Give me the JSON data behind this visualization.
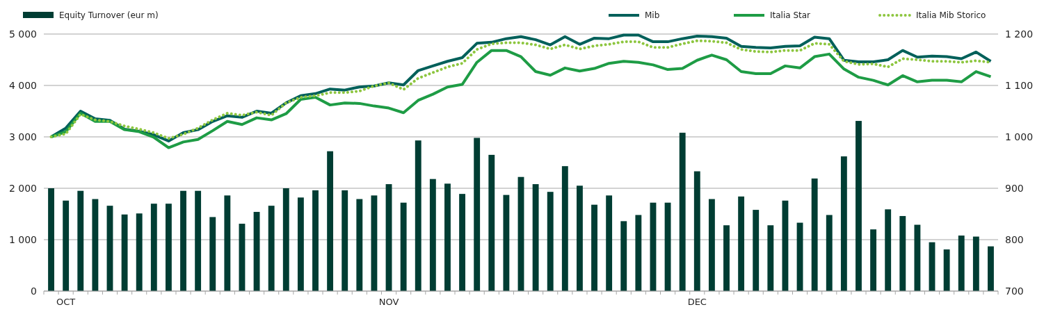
{
  "chart_data": {
    "type": "bar",
    "categories": [
      null,
      "OCT",
      null,
      null,
      null,
      null,
      null,
      null,
      null,
      null,
      null,
      null,
      null,
      null,
      null,
      null,
      null,
      null,
      null,
      null,
      null,
      null,
      null,
      "NOV",
      null,
      null,
      null,
      null,
      null,
      null,
      null,
      null,
      null,
      null,
      null,
      null,
      null,
      null,
      null,
      null,
      null,
      null,
      null,
      null,
      "DEC",
      null,
      null,
      null,
      null,
      null,
      null,
      null,
      null,
      null,
      null,
      null,
      null,
      null,
      null,
      null,
      null,
      null,
      null,
      null,
      null
    ],
    "series": [
      {
        "name": "Equity Turnover (eur m)",
        "color": "#003d33",
        "values": [
          2000,
          1760,
          1950,
          1790,
          1660,
          1490,
          1510,
          1700,
          1700,
          1950,
          1950,
          1440,
          1860,
          1310,
          1540,
          1660,
          2000,
          1820,
          1960,
          2720,
          1960,
          1790,
          1860,
          2080,
          1720,
          2930,
          2180,
          2090,
          1890,
          2980,
          2650,
          1870,
          2220,
          2080,
          1930,
          2430,
          2050,
          1680,
          1860,
          1360,
          1480,
          1720,
          1720,
          3080,
          2330,
          1790,
          1280,
          1840,
          1580,
          1280,
          1760,
          1330,
          2190,
          1480,
          2620,
          3310,
          1200,
          1590,
          1460,
          1290,
          950,
          810,
          1080,
          1060,
          870
        ]
      },
      {
        "name": "Mib",
        "type": "line",
        "axis": "y2",
        "color": "#00605a",
        "line_style": "solid",
        "values": [
          1000,
          1017,
          1050,
          1035,
          1032,
          1015,
          1011,
          1004,
          992,
          1008,
          1014,
          1030,
          1041,
          1038,
          1050,
          1046,
          1066,
          1080,
          1084,
          1093,
          1091,
          1097,
          1099,
          1105,
          1101,
          1129,
          1138,
          1147,
          1154,
          1182,
          1184,
          1191,
          1195,
          1189,
          1179,
          1195,
          1180,
          1192,
          1191,
          1198,
          1198,
          1185,
          1185,
          1191,
          1196,
          1195,
          1192,
          1176,
          1174,
          1173,
          1176,
          1177,
          1194,
          1191,
          1149,
          1146,
          1146,
          1150,
          1168,
          1155,
          1157,
          1156,
          1152,
          1165,
          1147
        ]
      },
      {
        "name": "Italia Star",
        "type": "line",
        "axis": "y2",
        "color": "#1e9c45",
        "line_style": "solid",
        "values": [
          1000,
          1010,
          1046,
          1030,
          1030,
          1014,
          1010,
          999,
          979,
          990,
          995,
          1012,
          1030,
          1024,
          1037,
          1033,
          1045,
          1073,
          1077,
          1062,
          1066,
          1065,
          1060,
          1056,
          1047,
          1071,
          1083,
          1097,
          1102,
          1145,
          1168,
          1168,
          1156,
          1127,
          1120,
          1134,
          1128,
          1133,
          1143,
          1147,
          1145,
          1140,
          1131,
          1133,
          1149,
          1159,
          1150,
          1127,
          1123,
          1123,
          1138,
          1134,
          1156,
          1161,
          1132,
          1116,
          1110,
          1101,
          1119,
          1107,
          1110,
          1110,
          1107,
          1127,
          1117
        ]
      },
      {
        "name": "Italia Mib Storico",
        "type": "line",
        "axis": "y2",
        "color": "#8dc63f",
        "line_style": "dotted",
        "values": [
          1000,
          1006,
          1044,
          1033,
          1030,
          1021,
          1015,
          1008,
          997,
          1005,
          1017,
          1033,
          1046,
          1042,
          1048,
          1042,
          1066,
          1077,
          1080,
          1086,
          1086,
          1089,
          1099,
          1105,
          1092,
          1114,
          1125,
          1136,
          1143,
          1170,
          1181,
          1183,
          1183,
          1179,
          1171,
          1179,
          1171,
          1177,
          1180,
          1185,
          1185,
          1174,
          1174,
          1181,
          1187,
          1186,
          1183,
          1170,
          1166,
          1165,
          1168,
          1168,
          1182,
          1180,
          1147,
          1141,
          1142,
          1136,
          1152,
          1150,
          1147,
          1147,
          1145,
          1148,
          1145
        ]
      }
    ],
    "ylim": [
      0,
      5000
    ],
    "yticks": [
      {
        "value": 0,
        "label": "0"
      },
      {
        "value": 1000,
        "label": "1 000"
      },
      {
        "value": 2000,
        "label": "2 000"
      },
      {
        "value": 3000,
        "label": "3 000"
      },
      {
        "value": 4000,
        "label": "4 000"
      },
      {
        "value": 5000,
        "label": "5 000"
      }
    ],
    "y2lim": [
      700,
      1200
    ],
    "y2ticks": [
      {
        "value": 700,
        "label": "700"
      },
      {
        "value": 800,
        "label": "800"
      },
      {
        "value": 900,
        "label": "900"
      },
      {
        "value": 1000,
        "label": "1 000"
      },
      {
        "value": 1100,
        "label": "1 100"
      },
      {
        "value": 1200,
        "label": "1 200"
      }
    ],
    "grid": "y",
    "legend": "top"
  }
}
